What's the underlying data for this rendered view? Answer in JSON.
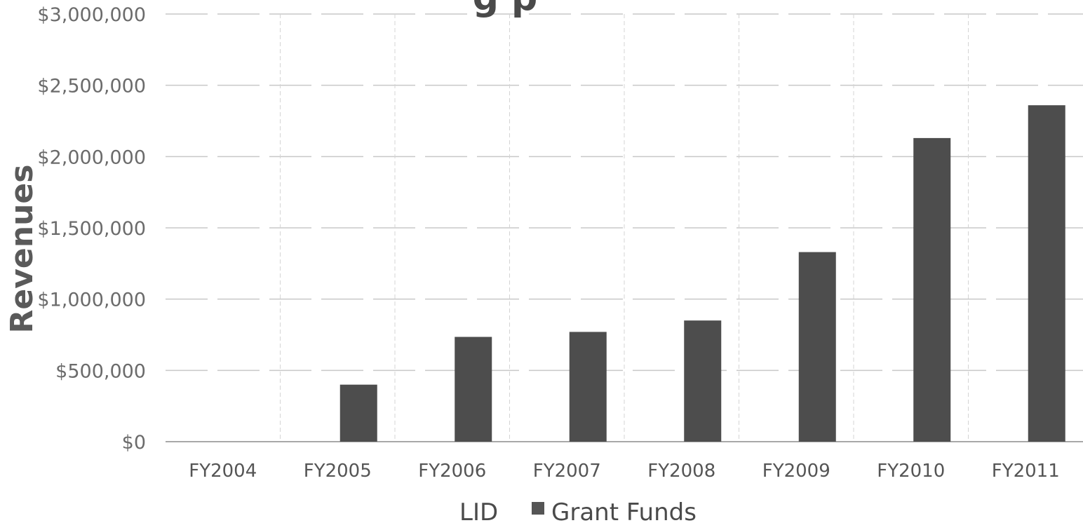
{
  "chart_data": {
    "type": "bar",
    "title_fragment": "g  p",
    "ylabel": "Revenues",
    "xlabel": "",
    "categories": [
      "FY2004",
      "FY2005",
      "FY2006",
      "FY2007",
      "FY2008",
      "FY2009",
      "FY2010",
      "FY2011"
    ],
    "series": [
      {
        "name": "LID",
        "values": [
          0,
          0,
          0,
          0,
          0,
          0,
          0,
          0
        ]
      },
      {
        "name": "Grant Funds",
        "values": [
          0,
          400000,
          735000,
          770000,
          850000,
          1330000,
          2130000,
          2360000
        ]
      }
    ],
    "ylim": [
      0,
      3000000
    ],
    "yticks": [
      "$0",
      "$500,000",
      "$1,000,000",
      "$1,500,000",
      "$2,000,000",
      "$2,500,000",
      "$3,000,000"
    ],
    "ytick_values": [
      0,
      500000,
      1000000,
      1500000,
      2000000,
      2500000,
      3000000
    ],
    "grid": true,
    "legend_position": "bottom",
    "colors": {
      "bar": "#4d4d4d",
      "grid": "#c8c8c8",
      "legend_marker": "#555555"
    }
  }
}
